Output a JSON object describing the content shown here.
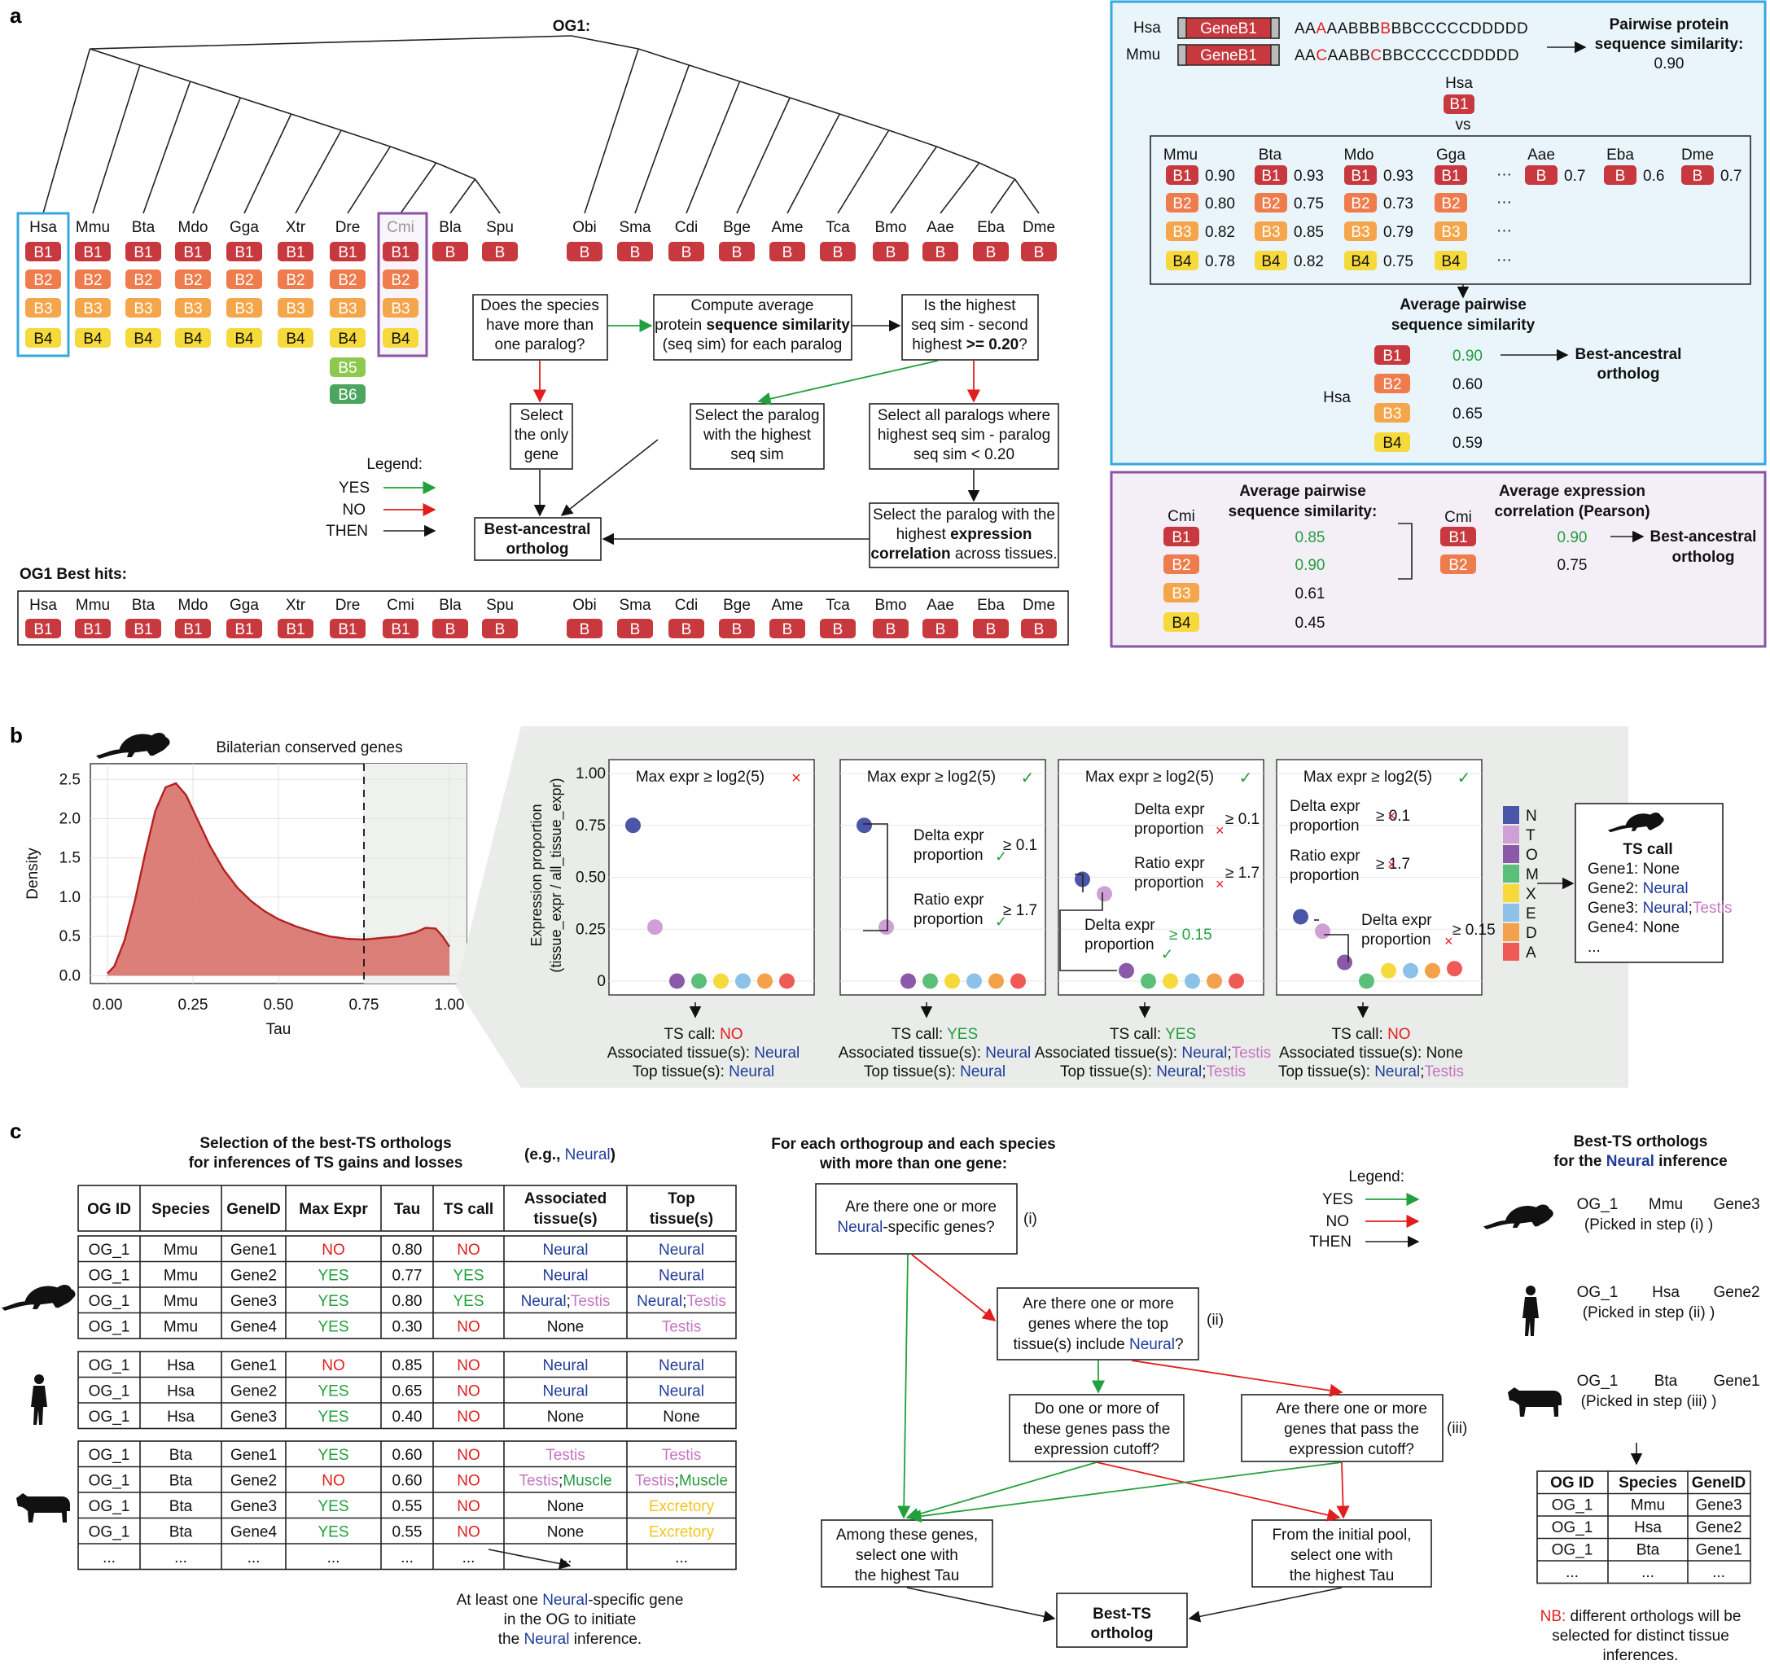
{
  "colors": {
    "b1": "#c8393f",
    "b2": "#ef7c4d",
    "b3": "#f5a64a",
    "b4": "#f6d93b",
    "b5": "#8ec94f",
    "b6": "#4da660",
    "yes": "#22a03d",
    "no": "#e21d1d",
    "neural": "#1f3c99",
    "testis": "#c675c3",
    "muscle": "#2a9a40",
    "excretory": "#f3c51c",
    "tissue_n": "#4c56a8",
    "tissue_t": "#cfa0d6",
    "tissue_o": "#8a5aa8",
    "tissue_m": "#5bbf79",
    "tissue_x": "#f6d93b",
    "tissue_e": "#8cc2e9",
    "tissue_d": "#f3a14a",
    "tissue_a": "#ef5a56",
    "blue_panel": "#36a8dc",
    "purple_panel": "#8a54a6"
  },
  "panel_a": {
    "label": "a",
    "og": "OG1:",
    "species_left": [
      "Hsa",
      "Mmu",
      "Bta",
      "Mdo",
      "Gga",
      "Xtr",
      "Dre",
      "Cmi",
      "Bla",
      "Spu"
    ],
    "species_right": [
      "Obi",
      "Sma",
      "Cdi",
      "Bge",
      "Ame",
      "Tca",
      "Bmo",
      "Aae",
      "Eba",
      "Dme"
    ],
    "pills": {
      "b1": "B1",
      "b2": "B2",
      "b3": "B3",
      "b4": "B4",
      "b5": "B5",
      "b6": "B6",
      "b": "B"
    },
    "flow": {
      "q1": [
        "Does the species",
        "have more than",
        "one paralog?"
      ],
      "q2": [
        "Compute average",
        "protein ",
        "sequence similarity",
        "(seq sim) for each paralog"
      ],
      "q3": [
        "Is the highest",
        "seq sim - second",
        "highest ",
        ">= 0.20",
        "?"
      ],
      "select_only": [
        "Select",
        "the only",
        "gene"
      ],
      "select_highest": [
        "Select the paralog",
        "with the highest",
        "seq sim"
      ],
      "select_all": [
        "Select all paralogs where",
        "highest seq sim - paralog",
        "seq sim < 0.20"
      ],
      "select_expr": [
        "Select the paralog with the",
        "highest ",
        "expression",
        "correlation",
        " across tissues."
      ],
      "best": [
        "Best-ancestral",
        "ortholog"
      ]
    },
    "legend": {
      "title": "Legend:",
      "yes": "YES",
      "no": "NO",
      "then": "THEN"
    },
    "best_hits_title": "OG1 Best hits:"
  },
  "panel_a_blue": {
    "hsa": "Hsa",
    "mmu": "Mmu",
    "gene": "GeneB1",
    "seq1_pre": "AA",
    "seq1_mut": "A",
    "seq1_mid": "AABBB",
    "seq1_mut2": "B",
    "seq1_post": "BBCCCCCDDDDD",
    "seq2_pre": "AA",
    "seq2_mut": "C",
    "seq2_mid": "AABB",
    "seq2_mut2": "C",
    "seq2_post": "BBCCCCCDDDDD",
    "pairwise_title": [
      "Pairwise protein",
      "sequence similarity:"
    ],
    "pairwise_value": "0.90",
    "vs_species": "Hsa",
    "vs_pill": "B1",
    "vs": "vs",
    "compare_species": [
      "Mmu",
      "Bta",
      "Mdo",
      "Gga",
      "Aae",
      "Eba",
      "Dme"
    ],
    "values": {
      "mmu": [
        "0.90",
        "0.80",
        "0.82",
        "0.78"
      ],
      "bta": [
        "0.93",
        "0.75",
        "0.85",
        "0.82"
      ],
      "mdo": [
        "0.93",
        "0.73",
        "0.79",
        "0.75"
      ],
      "ellipsis": "···",
      "single": [
        "0.7",
        "0.6",
        "0.7"
      ]
    },
    "avg_title": [
      "Average pairwise",
      "sequence similarity"
    ],
    "avg_species": "Hsa",
    "avg_values": [
      "0.90",
      "0.60",
      "0.65",
      "0.59"
    ],
    "best": [
      "Best-ancestral",
      "ortholog"
    ]
  },
  "panel_a_purple": {
    "species": "Cmi",
    "sim_title": [
      "Average pairwise",
      "sequence similarity:"
    ],
    "sim_values": [
      "0.85",
      "0.90",
      "0.61",
      "0.45"
    ],
    "expr_title": [
      "Average expression",
      "correlation (Pearson)"
    ],
    "expr_values": [
      "0.90",
      "0.75"
    ],
    "best": [
      "Best-ancestral",
      "ortholog"
    ]
  },
  "panel_b": {
    "label": "b",
    "chart_data": {
      "type": "area",
      "title": "Bilaterian conserved genes",
      "xlabel": "Tau",
      "ylabel": "Density",
      "xlim": [
        0,
        1
      ],
      "ylim": [
        0,
        2.6
      ],
      "xticks": [
        "0.00",
        "0.25",
        "0.50",
        "0.75",
        "1.00"
      ],
      "yticks": [
        "0.0",
        "0.5",
        "1.0",
        "1.5",
        "2.0",
        "2.5"
      ],
      "threshold": 0.75,
      "x": [
        0.0,
        0.02,
        0.05,
        0.08,
        0.11,
        0.14,
        0.17,
        0.2,
        0.23,
        0.26,
        0.3,
        0.34,
        0.38,
        0.42,
        0.46,
        0.5,
        0.55,
        0.6,
        0.65,
        0.7,
        0.75,
        0.8,
        0.85,
        0.9,
        0.93,
        0.96,
        0.98,
        1.0
      ],
      "y": [
        0.03,
        0.12,
        0.45,
        0.95,
        1.55,
        2.1,
        2.4,
        2.45,
        2.3,
        2.02,
        1.65,
        1.35,
        1.12,
        0.95,
        0.82,
        0.72,
        0.63,
        0.56,
        0.5,
        0.47,
        0.46,
        0.48,
        0.5,
        0.55,
        0.61,
        0.6,
        0.5,
        0.37
      ]
    },
    "dots_chart": {
      "ylabel": [
        "Expression proportion",
        "(tissue_expr / all_tissue_expr)"
      ],
      "yticks": [
        "0",
        "0.25",
        "0.50",
        "0.75",
        "1.00"
      ],
      "panels": [
        {
          "header": "Max expr ≥ log2(5)",
          "ok": false,
          "values": [
            0.75,
            0.26,
            0.0,
            0.0,
            0.0,
            0.0,
            0.0,
            0.0
          ],
          "ts_call": "NO",
          "assoc": "Neural",
          "top": "Neural"
        },
        {
          "header": "Max expr ≥ log2(5)",
          "ok": true,
          "values": [
            0.75,
            0.26,
            0.0,
            0.0,
            0.0,
            0.0,
            0.0,
            0.0
          ],
          "ts_call": "YES",
          "assoc": "Neural",
          "top": "Neural"
        },
        {
          "header": "Max expr ≥ log2(5)",
          "ok": true,
          "values": [
            0.49,
            0.42,
            0.05,
            0.0,
            0.0,
            0.0,
            0.0,
            0.0
          ],
          "ts_call": "YES",
          "assoc": [
            "Neural",
            ";",
            "Testis"
          ],
          "top": [
            "Neural",
            ";",
            "Testis"
          ]
        },
        {
          "header": "Max expr ≥ log2(5)",
          "ok": true,
          "values": [
            0.31,
            0.24,
            0.09,
            0.0,
            0.05,
            0.05,
            0.05,
            0.06
          ],
          "ts_call": "NO",
          "assoc": "None",
          "top": [
            "Neural",
            ";",
            "Testis"
          ]
        }
      ],
      "annotations": {
        "delta": [
          "Delta expr",
          "proportion"
        ],
        "ratio": [
          "Ratio expr",
          "proportion"
        ],
        "ge01": "≥ 0.1",
        "ge17": "≥ 1.7",
        "ge015": "≥ 0.15"
      },
      "tissue_legend": [
        "N",
        "T",
        "O",
        "M",
        "X",
        "E",
        "D",
        "A"
      ],
      "ts_label": "TS call: ",
      "assoc_label": "Associated tissue(s): ",
      "top_label": "Top tissue(s): "
    },
    "ts_box": {
      "title": "TS call",
      "gene1": "Gene1: None",
      "gene2": "Gene2: ",
      "neural": "Neural",
      "gene3": "Gene3: ",
      "testis": "Testis",
      "sep": ";",
      "gene4": "Gene4: None",
      "ellipsis": "..."
    }
  },
  "panel_c": {
    "label": "c",
    "title": [
      "Selection of the best-TS orthologs",
      "for inferences of TS gains and losses"
    ],
    "eg": [
      "(e.g., ",
      "Neural",
      ")"
    ],
    "headers": [
      "OG ID",
      "Species",
      "GeneID",
      "Max Expr",
      "Tau",
      "TS call",
      "Associated tissue(s)",
      "Top tissue(s)"
    ],
    "rows_mmu": [
      [
        "OG_1",
        "Mmu",
        "Gene1",
        "NO",
        "0.80",
        "NO",
        "Neural",
        "Neural"
      ],
      [
        "OG_1",
        "Mmu",
        "Gene2",
        "YES",
        "0.77",
        "YES",
        "Neural",
        "Neural"
      ],
      [
        "OG_1",
        "Mmu",
        "Gene3",
        "YES",
        "0.80",
        "YES",
        "Neural;Testis",
        "Neural;Testis"
      ],
      [
        "OG_1",
        "Mmu",
        "Gene4",
        "YES",
        "0.30",
        "NO",
        "None",
        "Testis"
      ]
    ],
    "rows_hsa": [
      [
        "OG_1",
        "Hsa",
        "Gene1",
        "NO",
        "0.85",
        "NO",
        "Neural",
        "Neural"
      ],
      [
        "OG_1",
        "Hsa",
        "Gene2",
        "YES",
        "0.65",
        "NO",
        "Neural",
        "Neural"
      ],
      [
        "OG_1",
        "Hsa",
        "Gene3",
        "YES",
        "0.40",
        "NO",
        "None",
        "None"
      ]
    ],
    "rows_bta": [
      [
        "OG_1",
        "Bta",
        "Gene1",
        "YES",
        "0.60",
        "NO",
        "Testis",
        "Testis"
      ],
      [
        "OG_1",
        "Bta",
        "Gene2",
        "NO",
        "0.60",
        "NO",
        "Testis;Muscle",
        "Testis;Muscle"
      ],
      [
        "OG_1",
        "Bta",
        "Gene3",
        "YES",
        "0.55",
        "NO",
        "None",
        "Excretory"
      ],
      [
        "OG_1",
        "Bta",
        "Gene4",
        "YES",
        "0.55",
        "NO",
        "None",
        "Excretory"
      ],
      [
        "...",
        "...",
        "...",
        "...",
        "...",
        "...",
        "...",
        "..."
      ]
    ],
    "footnote": [
      "At least one ",
      "Neural",
      "-specific gene",
      "in the OG to initiate",
      "the ",
      "Neural",
      " inference."
    ],
    "flow_title": [
      "For each orthogroup and each species",
      "with more than one gene:"
    ],
    "f1": [
      "Are there one or more",
      "Neural",
      "-specific genes?"
    ],
    "f1_tag": "(i)",
    "f2": [
      "Are there one or more",
      "genes where the top",
      "tissue(s) include ",
      "Neural",
      "?"
    ],
    "f2_tag": "(ii)",
    "f3": [
      "Do one or more of",
      "these genes pass the",
      "expression cutoff?"
    ],
    "f4": [
      "Are there one or more",
      "genes that pass the",
      "expression cutoff?"
    ],
    "f4_tag": "(iii)",
    "f5": [
      "Among  these genes,",
      "select one with",
      "the highest Tau"
    ],
    "f6": [
      "From the initial pool,",
      "select one with",
      "the highest Tau"
    ],
    "f7": [
      "Best-TS",
      "ortholog"
    ],
    "legend": {
      "title": "Legend:",
      "yes": "YES",
      "no": "NO",
      "then": "THEN"
    },
    "right_title": [
      "Best-TS orthologs",
      "for the ",
      "Neural",
      " inference"
    ],
    "picks": [
      {
        "og": "OG_1",
        "sp": "Mmu",
        "gene": "Gene3",
        "step": "(Picked in step (i) )"
      },
      {
        "og": "OG_1",
        "sp": "Hsa",
        "gene": "Gene2",
        "step": "(Picked in step (ii) )"
      },
      {
        "og": "OG_1",
        "sp": "Bta",
        "gene": "Gene1",
        "step": "(Picked in step (iii) )"
      }
    ],
    "small_headers": [
      "OG ID",
      "Species",
      "GeneID"
    ],
    "small_rows": [
      [
        "OG_1",
        "Mmu",
        "Gene3"
      ],
      [
        "OG_1",
        "Hsa",
        "Gene2"
      ],
      [
        "OG_1",
        "Bta",
        "Gene1"
      ],
      [
        "...",
        "...",
        "..."
      ]
    ],
    "nb": [
      "NB:",
      " different orthologs will be",
      "selected for distinct tissue",
      "inferences."
    ]
  }
}
